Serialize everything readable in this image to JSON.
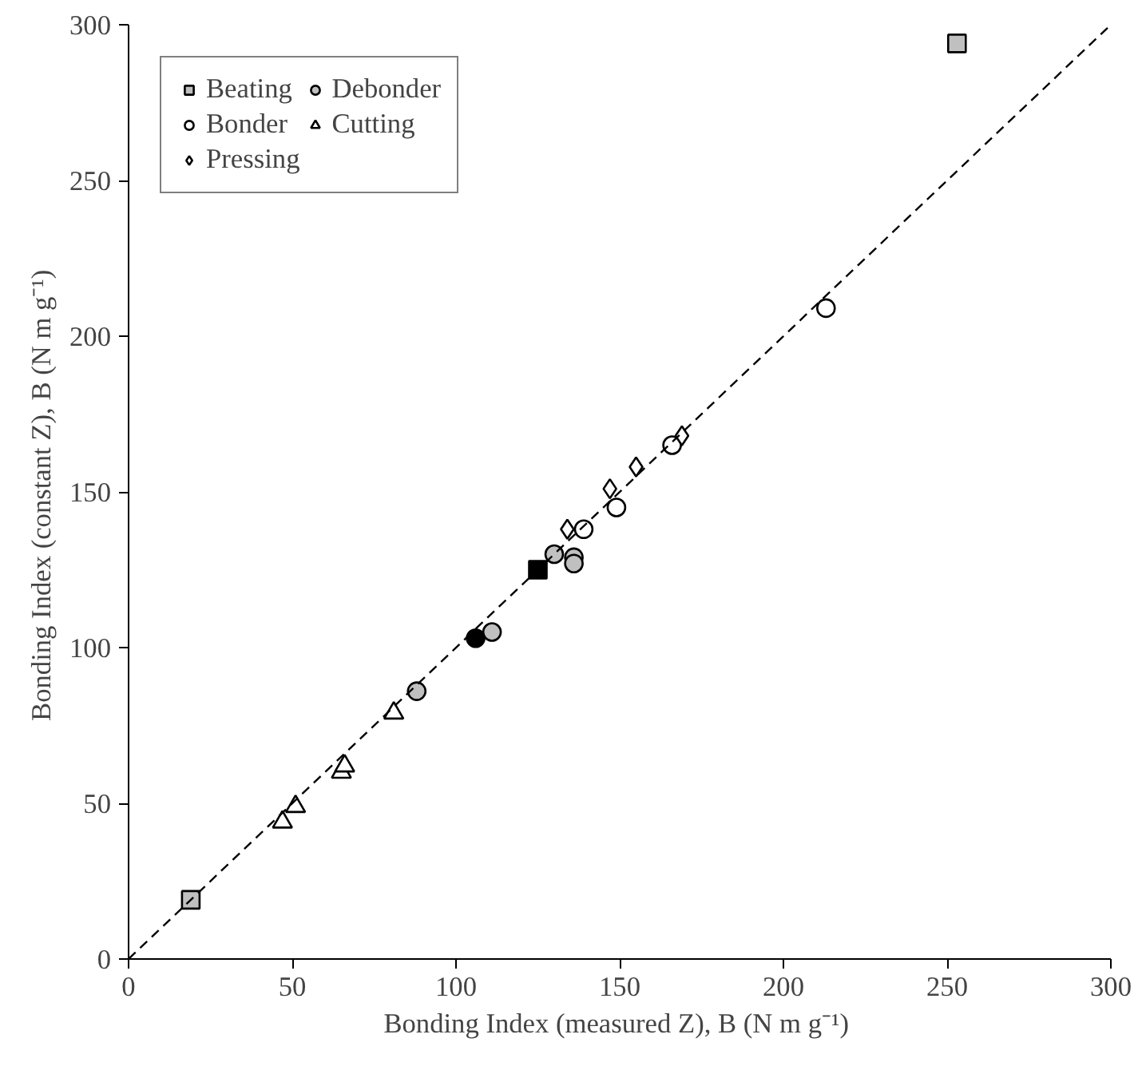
{
  "chart_data": {
    "type": "scatter",
    "xlabel": "Bonding Index (measured Z), B  (N m g⁻¹)",
    "ylabel": "Bonding Index (constant Z), B  (N m g⁻¹)",
    "xlim": [
      0,
      300
    ],
    "ylim": [
      0,
      300
    ],
    "xticks": [
      0,
      50,
      100,
      150,
      200,
      250,
      300
    ],
    "yticks": [
      0,
      50,
      100,
      150,
      200,
      250,
      300
    ],
    "grid": false,
    "legend": "top left",
    "series": [
      {
        "name": "Beating",
        "marker": "square",
        "color": "#c0c0c0",
        "x": [
          19,
          253
        ],
        "values": [
          19,
          294
        ]
      },
      {
        "name": "Bonder",
        "marker": "circle",
        "color": "#ffffff",
        "x": [
          139,
          149,
          166,
          213
        ],
        "values": [
          138,
          145,
          165,
          209
        ]
      },
      {
        "name": "Pressing",
        "marker": "diamond",
        "color": "#ffffff",
        "x": [
          134,
          147,
          155,
          169
        ],
        "values": [
          138,
          151,
          158,
          168
        ]
      },
      {
        "name": "Debonder",
        "marker": "circle",
        "color": "#c0c0c0",
        "x": [
          88,
          111,
          130,
          136,
          136
        ],
        "values": [
          86,
          105,
          130,
          129,
          127
        ]
      },
      {
        "name": "Cutting",
        "marker": "triangle",
        "color": "#ffffff",
        "x": [
          47,
          51,
          65,
          66,
          81
        ],
        "values": [
          44,
          49,
          60,
          62,
          79
        ]
      },
      {
        "marker": "square",
        "color": "#000000",
        "x": [
          125
        ],
        "values": [
          125
        ]
      },
      {
        "marker": "circle",
        "color": "#000000",
        "x": [
          106
        ],
        "values": [
          103
        ]
      },
      {
        "type": "line",
        "line_style": "dashed",
        "marker": "none",
        "color": "#000000",
        "x": [
          0,
          300
        ],
        "values": [
          0,
          300
        ]
      }
    ]
  }
}
